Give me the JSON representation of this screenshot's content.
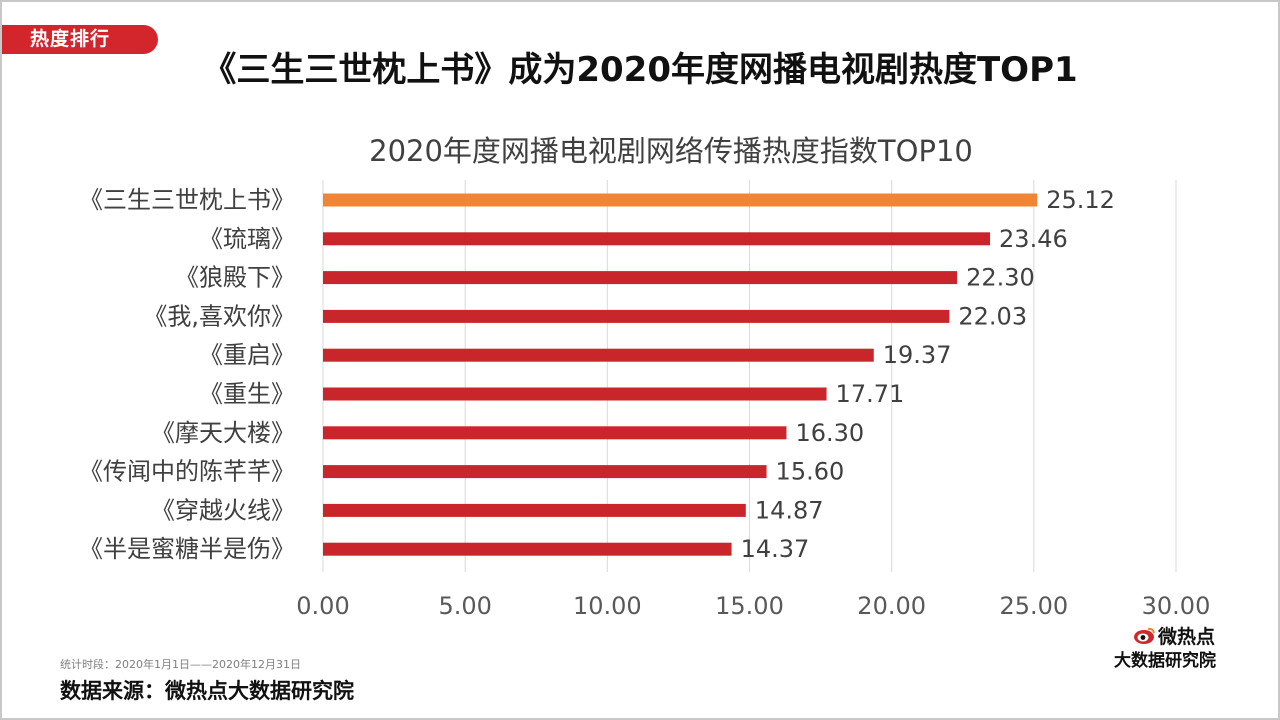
{
  "section_tag": "热度排行",
  "headline": "《三生三世枕上书》成为2020年度网播电视剧热度TOP1",
  "chart_data": {
    "type": "bar",
    "orientation": "horizontal",
    "title": "2020年度网播电视剧网络传播热度指数TOP10",
    "categories": [
      "《三生三世枕上书》",
      "《琉璃》",
      "《狼殿下》",
      "《我,喜欢你》",
      "《重启》",
      "《重生》",
      "《摩天大楼》",
      "《传闻中的陈芊芊》",
      "《穿越火线》",
      "《半是蜜糖半是伤》"
    ],
    "values": [
      25.12,
      23.46,
      22.3,
      22.03,
      19.37,
      17.71,
      16.3,
      15.6,
      14.87,
      14.37
    ],
    "value_labels": [
      "25.12",
      "23.46",
      "22.30",
      "22.03",
      "19.37",
      "17.71",
      "16.30",
      "15.60",
      "14.87",
      "14.37"
    ],
    "xlim": [
      0,
      30
    ],
    "xticks": [
      "0.00",
      "5.00",
      "10.00",
      "15.00",
      "20.00",
      "25.00",
      "30.00"
    ],
    "grid": "vertical",
    "colors": {
      "highlight": "#f08536",
      "default": "#c9262c",
      "grid": "#d9d9d9"
    }
  },
  "footer": {
    "period": "统计时段：2020年1月1日——2020年12月31日",
    "source": "数据来源：微热点大数据研究院"
  },
  "logo": {
    "icon": "weibo-eye-icon",
    "name": "微热点",
    "subtitle": "大数据研究院"
  }
}
